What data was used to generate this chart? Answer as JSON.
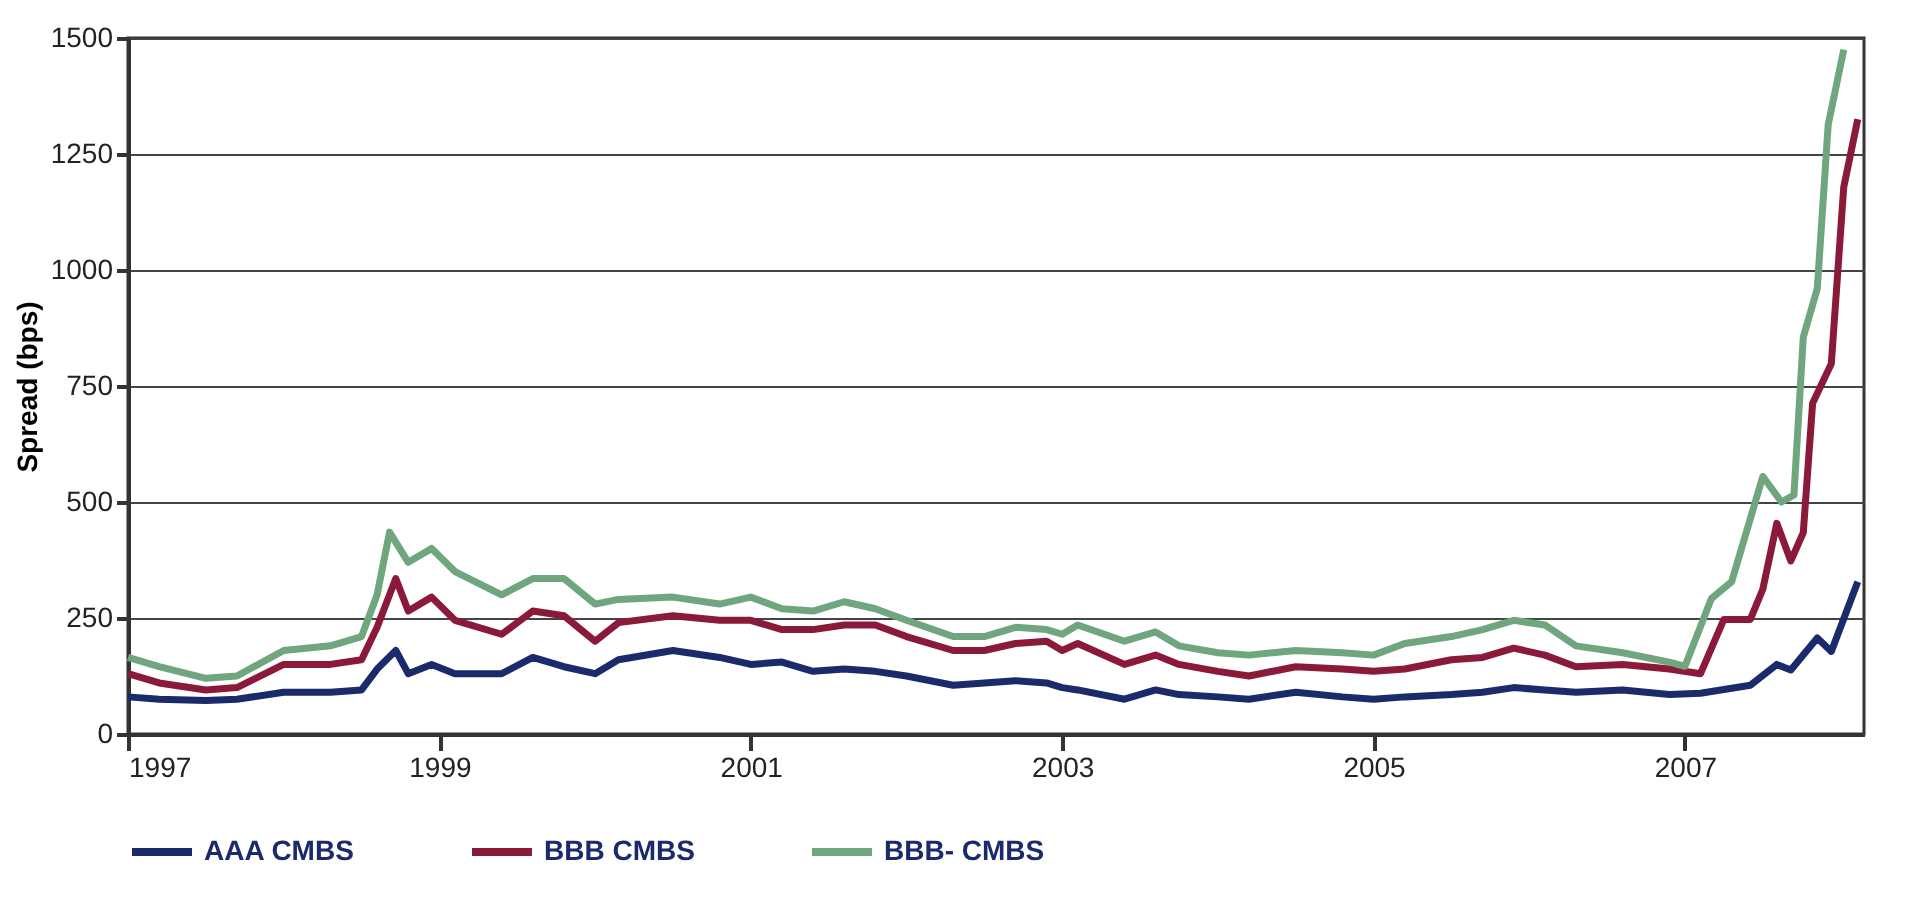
{
  "chart_data": {
    "type": "line",
    "ylabel": "Spread (bps)",
    "xlim": [
      1997,
      2008.15
    ],
    "xticks": [
      1997,
      1999,
      2001,
      2003,
      2005,
      2007
    ],
    "ylim": [
      0,
      1500
    ],
    "yticks": [
      0,
      250,
      500,
      750,
      1000,
      1250,
      1500
    ],
    "grid": "y",
    "legend": "bottom",
    "line_style": "solid",
    "marker": "none",
    "series": [
      {
        "name": "AAA CMBS",
        "color": "#1b2a6b",
        "x": [
          1997.0,
          1997.2,
          1997.5,
          1997.7,
          1998.0,
          1998.3,
          1998.5,
          1998.6,
          1998.72,
          1998.8,
          1998.95,
          1999.1,
          1999.4,
          1999.6,
          1999.8,
          2000.0,
          2000.15,
          2000.5,
          2000.8,
          2001.0,
          2001.2,
          2001.4,
          2001.6,
          2001.8,
          2002.0,
          2002.3,
          2002.5,
          2002.7,
          2002.9,
          2003.0,
          2003.1,
          2003.4,
          2003.6,
          2003.75,
          2004.0,
          2004.2,
          2004.5,
          2004.8,
          2005.0,
          2005.2,
          2005.5,
          2005.7,
          2005.9,
          2006.1,
          2006.3,
          2006.6,
          2006.9,
          2007.1,
          2007.42,
          2007.59,
          2007.68,
          2007.85,
          2007.94,
          2008.11
        ],
        "values": [
          80,
          75,
          72,
          75,
          90,
          90,
          95,
          140,
          180,
          130,
          150,
          130,
          130,
          165,
          145,
          130,
          160,
          180,
          165,
          150,
          155,
          135,
          140,
          135,
          125,
          105,
          110,
          115,
          110,
          100,
          95,
          75,
          95,
          85,
          80,
          75,
          90,
          80,
          75,
          80,
          85,
          90,
          100,
          95,
          90,
          95,
          85,
          88,
          105,
          150,
          138,
          207,
          178,
          328
        ]
      },
      {
        "name": "BBB CMBS",
        "color": "#8b1a3a",
        "x": [
          1997.0,
          1997.2,
          1997.5,
          1997.7,
          1998.0,
          1998.3,
          1998.5,
          1998.6,
          1998.72,
          1998.8,
          1998.95,
          1999.1,
          1999.4,
          1999.6,
          1999.8,
          2000.0,
          2000.15,
          2000.5,
          2000.8,
          2001.0,
          2001.2,
          2001.4,
          2001.6,
          2001.8,
          2002.0,
          2002.3,
          2002.5,
          2002.7,
          2002.9,
          2003.0,
          2003.1,
          2003.4,
          2003.6,
          2003.75,
          2004.0,
          2004.2,
          2004.5,
          2004.8,
          2005.0,
          2005.2,
          2005.5,
          2005.7,
          2005.9,
          2006.1,
          2006.3,
          2006.6,
          2006.9,
          2007.1,
          2007.25,
          2007.42,
          2007.5,
          2007.59,
          2007.68,
          2007.76,
          2007.82,
          2007.94,
          2008.02,
          2008.11
        ],
        "values": [
          130,
          110,
          95,
          100,
          150,
          150,
          160,
          230,
          335,
          265,
          295,
          245,
          215,
          265,
          255,
          200,
          240,
          255,
          245,
          245,
          225,
          225,
          235,
          235,
          210,
          180,
          180,
          195,
          200,
          180,
          195,
          150,
          170,
          150,
          135,
          125,
          145,
          140,
          135,
          140,
          160,
          165,
          185,
          170,
          145,
          150,
          140,
          130,
          247,
          247,
          312,
          454,
          373,
          434,
          713,
          798,
          1179,
          1325
        ]
      },
      {
        "name": "BBB- CMBS",
        "color": "#6fa67e",
        "x": [
          1997.0,
          1997.2,
          1997.5,
          1997.7,
          1998.0,
          1998.3,
          1998.5,
          1998.6,
          1998.68,
          1998.8,
          1998.95,
          1999.1,
          1999.4,
          1999.6,
          1999.8,
          2000.0,
          2000.15,
          2000.5,
          2000.8,
          2001.0,
          2001.2,
          2001.4,
          2001.6,
          2001.8,
          2002.0,
          2002.3,
          2002.5,
          2002.7,
          2002.9,
          2003.0,
          2003.1,
          2003.4,
          2003.6,
          2003.75,
          2004.0,
          2004.2,
          2004.5,
          2004.8,
          2005.0,
          2005.2,
          2005.5,
          2005.7,
          2005.9,
          2006.1,
          2006.3,
          2006.6,
          2006.9,
          2007.0,
          2007.17,
          2007.3,
          2007.5,
          2007.62,
          2007.7,
          2007.76,
          2007.85,
          2007.92,
          2008.02
        ],
        "values": [
          165,
          145,
          120,
          125,
          180,
          190,
          210,
          300,
          435,
          370,
          400,
          350,
          300,
          335,
          335,
          280,
          290,
          295,
          280,
          295,
          270,
          265,
          285,
          270,
          245,
          210,
          210,
          230,
          225,
          215,
          235,
          200,
          220,
          190,
          175,
          170,
          180,
          175,
          170,
          195,
          210,
          225,
          245,
          235,
          190,
          175,
          155,
          146,
          292,
          328,
          555,
          500,
          515,
          855,
          960,
          1313,
          1475
        ]
      }
    ]
  }
}
